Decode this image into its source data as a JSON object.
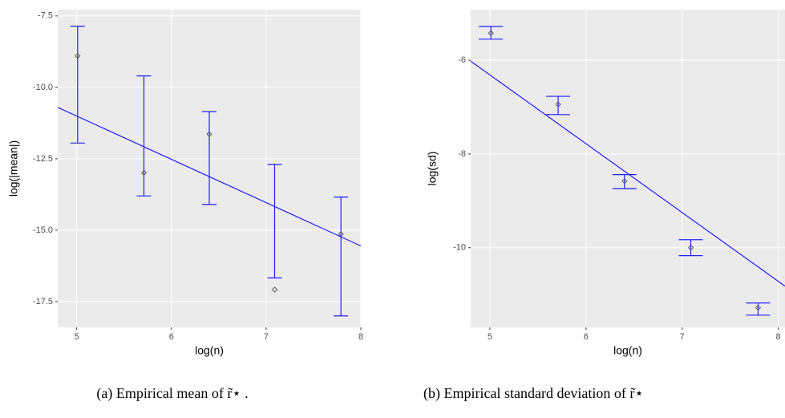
{
  "chart_data": [
    {
      "type": "scatter",
      "caption": "(a) Empirical mean of r̃⋆ .",
      "x_label": "log(n)",
      "y_label": "log(|mean|)",
      "xlim": [
        4.8,
        8.0
      ],
      "ylim": [
        -18.4,
        -7.28
      ],
      "xticks": [
        5,
        6,
        7,
        8
      ],
      "yticks": [
        -7.5,
        {
          "value": -10,
          "label": "-10.0"
        },
        -12.5,
        {
          "value": -15,
          "label": "-15.0"
        },
        -17.5
      ],
      "grid": true,
      "color": "#4d4d4d",
      "bar_color": "#2020ff",
      "x": [
        5.01,
        5.71,
        6.4,
        7.09,
        7.79
      ],
      "values": [
        -8.9,
        -12.99,
        -11.64,
        -17.08,
        -15.14
      ],
      "lower": [
        -11.95,
        -13.8,
        -14.1,
        -16.67,
        -18.0
      ],
      "upper": [
        -7.86,
        -9.6,
        -10.85,
        -12.7,
        -13.84
      ],
      "fit": {
        "x": [
          4.8,
          8.0
        ],
        "values": [
          -10.7,
          -15.55
        ],
        "color": "#2020ff"
      }
    },
    {
      "type": "scatter",
      "caption": "(b) Empirical standard deviation of r̃⋆",
      "x_label": "log(n)",
      "y_label": "log(sd)",
      "xlim": [
        4.8,
        8.07
      ],
      "ylim": [
        -11.7,
        -4.92
      ],
      "xticks": [
        5,
        6,
        7,
        8
      ],
      "yticks": [
        -6,
        -8,
        -10
      ],
      "grid": true,
      "color": "#4d4d4d",
      "bar_color": "#2020ff",
      "x": [
        5.01,
        5.71,
        6.4,
        7.09,
        7.79
      ],
      "values": [
        -5.42,
        -6.94,
        -8.58,
        -10.0,
        -11.28
      ],
      "lower": [
        -5.55,
        -7.16,
        -8.74,
        -10.17,
        -11.44
      ],
      "upper": [
        -5.28,
        -6.77,
        -8.44,
        -9.83,
        -11.18
      ],
      "fit": {
        "x": [
          4.8,
          8.07
        ],
        "values": [
          -6.02,
          -10.82
        ],
        "color": "#2020ff"
      }
    }
  ]
}
